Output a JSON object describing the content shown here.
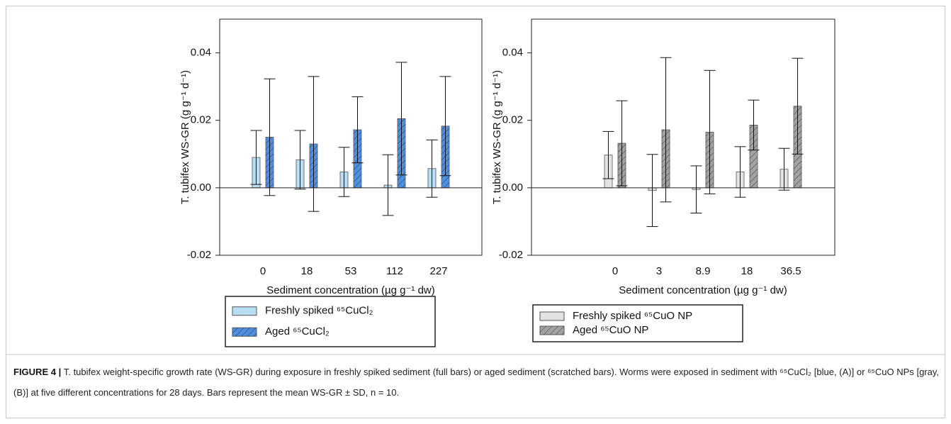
{
  "chart_data": [
    {
      "type": "bar",
      "y_label": "T. tubifex WS-GR (g g⁻¹ d⁻¹)",
      "x_label": "Sediment concentration (µg g⁻¹ dw)",
      "categories": [
        "0",
        "18",
        "53",
        "112",
        "227"
      ],
      "series": [
        {
          "name": "Freshly spiked ⁶⁵CuCl₂",
          "color": "#b8def3",
          "hatch": false,
          "values": [
            0.009,
            0.0083,
            0.0047,
            0.0008,
            0.0057
          ],
          "errors": [
            0.008,
            0.0087,
            0.0073,
            0.009,
            0.0085
          ]
        },
        {
          "name": "Aged ⁶⁵CuCl₂",
          "color": "#4f8fe2",
          "hatch": true,
          "values": [
            0.015,
            0.013,
            0.0172,
            0.0205,
            0.0183
          ],
          "errors": [
            0.0173,
            0.02,
            0.0098,
            0.0167,
            0.0147
          ]
        }
      ],
      "ylim": [
        -0.02,
        0.05
      ],
      "yticks": [
        -0.02,
        {
          "value": 0,
          "label": "0.00"
        },
        0.02,
        0.04
      ],
      "legend": "bottom"
    },
    {
      "type": "bar",
      "y_label": "T. tubifex WS-GR (g g⁻¹ d⁻¹)",
      "x_label": "Sediment concentration (µg g⁻¹ dw)",
      "categories": [
        "0",
        "3",
        "8.9",
        "18",
        "36.5"
      ],
      "series": [
        {
          "name": "Freshly spiked ⁶⁵CuO NP",
          "color": "#e2e2e2",
          "hatch": false,
          "values": [
            0.0097,
            -0.0008,
            -0.0005,
            0.0047,
            0.0055
          ],
          "errors": [
            0.007,
            0.0107,
            0.007,
            0.0075,
            0.0062
          ]
        },
        {
          "name": "Aged ⁶⁵CuO NP",
          "color": "#a2a2a2",
          "hatch": true,
          "values": [
            0.0132,
            0.0172,
            0.0165,
            0.0186,
            0.0242
          ],
          "errors": [
            0.0126,
            0.0214,
            0.0183,
            0.0074,
            0.0142
          ]
        }
      ],
      "ylim": [
        -0.02,
        0.05
      ],
      "yticks": [
        -0.02,
        {
          "value": 0,
          "label": "0.00"
        },
        0.02,
        0.04
      ],
      "legend": "bottom"
    }
  ],
  "caption": {
    "label": "FIGURE 4 |",
    "text": "T. tubifex weight-specific growth rate (WS-GR) during exposure in freshly spiked sediment (full bars) or aged sediment (scratched bars). Worms were exposed in sediment with ⁶⁵CuCl₂ [blue, (A)] or ⁶⁵CuO NPs [gray, (B)] at five different concentrations for 28 days. Bars represent the mean WS-GR ± SD, n = 10."
  }
}
